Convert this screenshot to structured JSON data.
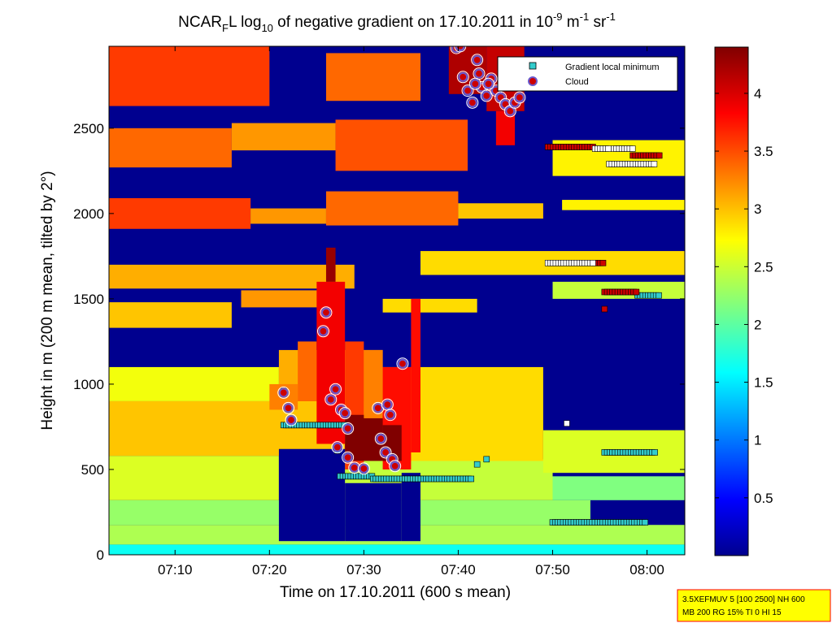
{
  "figure": {
    "title": {
      "pre": "NCAR",
      "sub1": "F",
      "mid": "L log",
      "sub2": "10",
      "post": " of negative gradient on 17.10.2011 in 10",
      "sup1": "-9",
      "post2": " m",
      "sup2": "-1",
      "post3": " sr",
      "sup3": "-1"
    },
    "info_box": {
      "line1": "3.5XEFMUV 5 [100 2500] NH 600",
      "line2": "MB 200 RG 15% TI 0 HI 15",
      "bg_color": "#ffff00",
      "border_color": "#ff0000"
    }
  },
  "chart_data": {
    "type": "heatmap",
    "xlabel": "Time on 17.10.2011 (600 s mean)",
    "ylabel": "Height in m (200 m mean, tilted by 2°)",
    "xlim_minutes": [
      423,
      484
    ],
    "ylim": [
      0,
      2980
    ],
    "x_ticks": [
      {
        "label": "07:10",
        "minute": 430
      },
      {
        "label": "07:20",
        "minute": 440
      },
      {
        "label": "07:30",
        "minute": 450
      },
      {
        "label": "07:40",
        "minute": 460
      },
      {
        "label": "07:50",
        "minute": 470
      },
      {
        "label": "08:00",
        "minute": 480
      }
    ],
    "y_ticks": [
      0,
      500,
      1000,
      1500,
      2000,
      2500
    ],
    "colorbar": {
      "range": [
        0,
        4.4
      ],
      "ticks": [
        "0.5",
        "1",
        "1.5",
        "2",
        "2.5",
        "3",
        "3.5",
        "4"
      ],
      "tick_values": [
        0.5,
        1,
        1.5,
        2,
        2.5,
        3,
        3.5,
        4
      ],
      "colormap": "jet"
    },
    "legend": {
      "placement": "top-right",
      "entries": [
        {
          "label": "Gradient local minimum",
          "marker": "square",
          "color": "#33cccc"
        },
        {
          "label": "Cloud",
          "marker": "circle",
          "color": "#cc0000"
        }
      ]
    },
    "layers": [
      {
        "x0": 423,
        "x1": 484,
        "y0": 0,
        "y1": 60,
        "v": 1.7
      },
      {
        "x0": 423,
        "x1": 484,
        "y0": 60,
        "y1": 175,
        "v": 2.4
      },
      {
        "x0": 423,
        "x1": 474,
        "y0": 175,
        "y1": 320,
        "v": 2.3
      },
      {
        "x0": 423,
        "x1": 441,
        "y0": 320,
        "y1": 580,
        "v": 2.6
      },
      {
        "x0": 445,
        "x1": 470,
        "y0": 320,
        "y1": 560,
        "v": 2.5
      },
      {
        "x0": 470,
        "x1": 484,
        "y0": 320,
        "y1": 460,
        "v": 2.2
      },
      {
        "x0": 423,
        "x1": 452,
        "y0": 580,
        "y1": 900,
        "v": 3.0
      },
      {
        "x0": 452,
        "x1": 469,
        "y0": 550,
        "y1": 1100,
        "v": 2.9
      },
      {
        "x0": 469,
        "x1": 484,
        "y0": 480,
        "y1": 730,
        "v": 2.6
      },
      {
        "x0": 423,
        "x1": 441,
        "y0": 900,
        "y1": 1100,
        "v": 2.7
      },
      {
        "x0": 441,
        "x1": 452,
        "y0": 900,
        "y1": 1200,
        "v": 3.1
      },
      {
        "x0": 423,
        "x1": 436,
        "y0": 1330,
        "y1": 1480,
        "v": 3.0
      },
      {
        "x0": 437,
        "x1": 446,
        "y0": 1450,
        "y1": 1550,
        "v": 3.2
      },
      {
        "x0": 423,
        "x1": 449,
        "y0": 1560,
        "y1": 1700,
        "v": 3.1
      },
      {
        "x0": 452,
        "x1": 462,
        "y0": 1420,
        "y1": 1500,
        "v": 2.9
      },
      {
        "x0": 456,
        "x1": 484,
        "y0": 1640,
        "y1": 1780,
        "v": 2.9
      },
      {
        "x0": 470,
        "x1": 484,
        "y0": 1500,
        "y1": 1600,
        "v": 2.5
      },
      {
        "x0": 423,
        "x1": 438,
        "y0": 1910,
        "y1": 2090,
        "v": 3.6
      },
      {
        "x0": 438,
        "x1": 446,
        "y0": 1940,
        "y1": 2030,
        "v": 3.2
      },
      {
        "x0": 446,
        "x1": 460,
        "y0": 1930,
        "y1": 2130,
        "v": 3.4
      },
      {
        "x0": 460,
        "x1": 469,
        "y0": 1970,
        "y1": 2060,
        "v": 3.0
      },
      {
        "x0": 471,
        "x1": 484,
        "y0": 2020,
        "y1": 2080,
        "v": 2.8
      },
      {
        "x0": 423,
        "x1": 436,
        "y0": 2270,
        "y1": 2500,
        "v": 3.4
      },
      {
        "x0": 436,
        "x1": 447,
        "y0": 2370,
        "y1": 2530,
        "v": 3.2
      },
      {
        "x0": 447,
        "x1": 461,
        "y0": 2250,
        "y1": 2550,
        "v": 3.5
      },
      {
        "x0": 470,
        "x1": 484,
        "y0": 2220,
        "y1": 2430,
        "v": 2.8
      },
      {
        "x0": 423,
        "x1": 440,
        "y0": 2630,
        "y1": 2980,
        "v": 3.6
      },
      {
        "x0": 446,
        "x1": 456,
        "y0": 2660,
        "y1": 2940,
        "v": 3.4
      },
      {
        "x0": 459,
        "x1": 463,
        "y0": 2700,
        "y1": 2980,
        "v": 4.2
      },
      {
        "x0": 463,
        "x1": 467,
        "y0": 2600,
        "y1": 2980,
        "v": 4.1
      },
      {
        "x0": 464,
        "x1": 466,
        "y0": 2400,
        "y1": 2600,
        "v": 3.9
      },
      {
        "x0": 440,
        "x1": 443,
        "y0": 850,
        "y1": 1000,
        "v": 3.3
      },
      {
        "x0": 443,
        "x1": 445,
        "y0": 900,
        "y1": 1250,
        "v": 3.4
      },
      {
        "x0": 445,
        "x1": 448,
        "y0": 650,
        "y1": 1600,
        "v": 3.9
      },
      {
        "x0": 446,
        "x1": 447,
        "y0": 1600,
        "y1": 1800,
        "v": 4.3
      },
      {
        "x0": 448,
        "x1": 450,
        "y0": 500,
        "y1": 1250,
        "v": 3.6
      },
      {
        "x0": 448,
        "x1": 453,
        "y0": 550,
        "y1": 820,
        "v": 4.4
      },
      {
        "x0": 450,
        "x1": 452,
        "y0": 800,
        "y1": 1200,
        "v": 3.3
      },
      {
        "x0": 452,
        "x1": 455,
        "y0": 500,
        "y1": 1100,
        "v": 3.8
      },
      {
        "x0": 452,
        "x1": 454,
        "y0": 550,
        "y1": 760,
        "v": 4.4
      },
      {
        "x0": 455,
        "x1": 456,
        "y0": 600,
        "y1": 1500,
        "v": 3.8
      }
    ],
    "gaps": [
      {
        "x0": 441,
        "x1": 448,
        "y0": 80,
        "y1": 620
      },
      {
        "x0": 448,
        "x1": 454,
        "y0": 80,
        "y1": 420
      },
      {
        "x0": 454,
        "x1": 456,
        "y0": 80,
        "y1": 480
      }
    ],
    "gradient_minima_cyan": [
      {
        "x0": 441.5,
        "x1": 448.0,
        "y": 760
      },
      {
        "x0": 447.5,
        "x1": 451.0,
        "y": 460
      },
      {
        "x0": 451.0,
        "x1": 461.5,
        "y": 445
      },
      {
        "x0": 470.0,
        "x1": 480.0,
        "y": 190
      },
      {
        "x0": 475.5,
        "x1": 481.0,
        "y": 600
      },
      {
        "x0": 479.0,
        "x1": 481.5,
        "y": 1520
      }
    ],
    "gradient_minima_extra": [
      {
        "x": 441.5,
        "y": 960,
        "c": "#33cccc"
      },
      {
        "x": 462.0,
        "y": 530,
        "c": "#33cccc"
      },
      {
        "x": 463.0,
        "y": 560,
        "c": "#33cccc"
      },
      {
        "x": 447.2,
        "y": 610,
        "c": "#33cccc"
      },
      {
        "x": 471.5,
        "y": 770,
        "c": "#ffffff"
      },
      {
        "x": 475.5,
        "y": 1440,
        "c": "#cc0000"
      }
    ],
    "gradient_minima_red": [
      {
        "x0": 469.5,
        "x1": 474.5,
        "y": 2390
      },
      {
        "x0": 475.5,
        "x1": 479.0,
        "y": 1540
      },
      {
        "x0": 478.5,
        "x1": 481.5,
        "y": 2340
      },
      {
        "x0": 474.5,
        "x1": 475.5,
        "y": 1710
      }
    ],
    "gradient_minima_white": [
      {
        "x0": 469.5,
        "x1": 474.5,
        "y": 1710
      },
      {
        "x0": 474.5,
        "x1": 476.0,
        "y": 2380
      },
      {
        "x0": 476.5,
        "x1": 478.5,
        "y": 2380
      },
      {
        "x0": 476.0,
        "x1": 481.0,
        "y": 2290
      }
    ],
    "cloud_points": [
      [
        441.5,
        950
      ],
      [
        442.0,
        860
      ],
      [
        442.3,
        790
      ],
      [
        445.7,
        1310
      ],
      [
        446.0,
        1420
      ],
      [
        446.5,
        910
      ],
      [
        447.0,
        970
      ],
      [
        447.6,
        850
      ],
      [
        448.0,
        830
      ],
      [
        448.3,
        740
      ],
      [
        447.2,
        630
      ],
      [
        448.3,
        570
      ],
      [
        449.0,
        510
      ],
      [
        450.0,
        505
      ],
      [
        451.5,
        860
      ],
      [
        451.8,
        680
      ],
      [
        452.3,
        600
      ],
      [
        452.5,
        880
      ],
      [
        452.8,
        820
      ],
      [
        453.0,
        560
      ],
      [
        453.3,
        520
      ],
      [
        454.1,
        1120
      ],
      [
        459.8,
        2970
      ],
      [
        460.5,
        2800
      ],
      [
        461.0,
        2720
      ],
      [
        461.5,
        2650
      ],
      [
        462.0,
        2900
      ],
      [
        462.2,
        2820
      ],
      [
        462.5,
        2740
      ],
      [
        463.0,
        2690
      ],
      [
        463.5,
        2790
      ],
      [
        464.0,
        2720
      ],
      [
        464.5,
        2680
      ],
      [
        465.0,
        2640
      ],
      [
        465.5,
        2600
      ],
      [
        466.0,
        2650
      ],
      [
        466.5,
        2680
      ],
      [
        460.2,
        2980
      ],
      [
        461.8,
        2760
      ],
      [
        463.2,
        2760
      ]
    ]
  }
}
